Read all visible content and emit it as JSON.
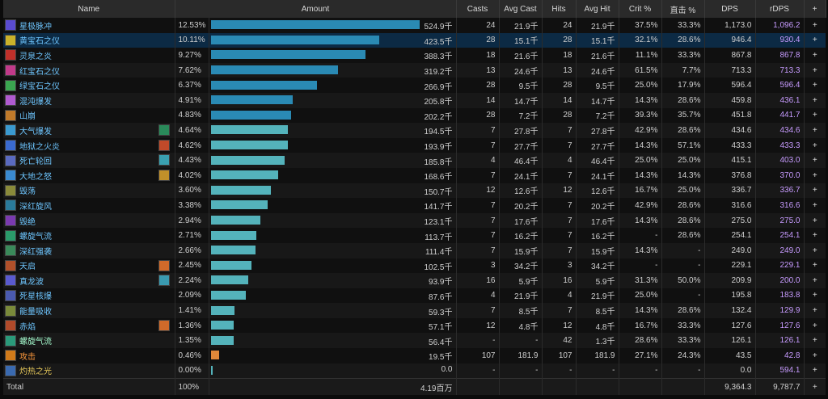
{
  "headers": {
    "name": "Name",
    "amount": "Amount",
    "casts": "Casts",
    "avg_cast": "Avg Cast",
    "hits": "Hits",
    "avg_hit": "Avg Hit",
    "crit": "Crit %",
    "zhiji": "直击 %",
    "dps": "DPS",
    "rdps": "rDPS",
    "plus": "+"
  },
  "colors": {
    "bar_primary": "#2a8ab4",
    "bar_pet": "#54b3bb",
    "bar_melee": "#e0893a",
    "selected_row": "#0c2a44",
    "rdps_text": "#c79bff"
  },
  "rows": [
    {
      "name": "星极脉冲",
      "icon": "star-icon",
      "icon_color": "#5a4bd0",
      "talent": "",
      "style": "",
      "percent": "12.53%",
      "fraction": 1.0,
      "amount": "524.9千",
      "casts": "24",
      "avg_cast": "21.9千",
      "hits": "24",
      "avg_hit": "21.9千",
      "crit": "37.5%",
      "zhiji": "33.3%",
      "dps": "1,173.0",
      "rdps": "1,096.2",
      "plus": "+"
    },
    {
      "name": "黄宝石之仪",
      "icon": "topaz-icon",
      "icon_color": "#c9b22a",
      "talent": "",
      "style": "",
      "percent": "10.11%",
      "fraction": 0.807,
      "amount": "423.5千",
      "casts": "28",
      "avg_cast": "15.1千",
      "hits": "28",
      "avg_hit": "15.1千",
      "crit": "32.1%",
      "zhiji": "28.6%",
      "dps": "946.4",
      "rdps": "930.4",
      "plus": "+",
      "selected": true
    },
    {
      "name": "灵泉之炎",
      "icon": "flame-icon",
      "icon_color": "#c0302a",
      "talent": "",
      "style": "",
      "percent": "9.27%",
      "fraction": 0.74,
      "amount": "388.3千",
      "casts": "18",
      "avg_cast": "21.6千",
      "hits": "18",
      "avg_hit": "21.6千",
      "crit": "11.1%",
      "zhiji": "33.3%",
      "dps": "867.8",
      "rdps": "867.8",
      "plus": "+"
    },
    {
      "name": "红宝石之仪",
      "icon": "ruby-icon",
      "icon_color": "#c23a8a",
      "talent": "",
      "style": "",
      "percent": "7.62%",
      "fraction": 0.608,
      "amount": "319.2千",
      "casts": "13",
      "avg_cast": "24.6千",
      "hits": "13",
      "avg_hit": "24.6千",
      "crit": "61.5%",
      "zhiji": "7.7%",
      "dps": "713.3",
      "rdps": "713.3",
      "plus": "+"
    },
    {
      "name": "绿宝石之仪",
      "icon": "emerald-icon",
      "icon_color": "#3aa650",
      "talent": "",
      "style": "",
      "percent": "6.37%",
      "fraction": 0.508,
      "amount": "266.9千",
      "casts": "28",
      "avg_cast": "9.5千",
      "hits": "28",
      "avg_hit": "9.5千",
      "crit": "25.0%",
      "zhiji": "17.9%",
      "dps": "596.4",
      "rdps": "596.4",
      "plus": "+"
    },
    {
      "name": "混沌爆发",
      "icon": "burst-icon",
      "icon_color": "#b05ad0",
      "talent": "",
      "style": "",
      "percent": "4.91%",
      "fraction": 0.392,
      "amount": "205.8千",
      "casts": "14",
      "avg_cast": "14.7千",
      "hits": "14",
      "avg_hit": "14.7千",
      "crit": "14.3%",
      "zhiji": "28.6%",
      "dps": "459.8",
      "rdps": "436.1",
      "plus": "+"
    },
    {
      "name": "山崩",
      "icon": "rock-icon",
      "icon_color": "#c07a2a",
      "talent": "",
      "style": "",
      "percent": "4.83%",
      "fraction": 0.385,
      "amount": "202.2千",
      "casts": "28",
      "avg_cast": "7.2千",
      "hits": "28",
      "avg_hit": "7.2千",
      "crit": "39.3%",
      "zhiji": "35.7%",
      "dps": "451.8",
      "rdps": "441.7",
      "plus": "+"
    },
    {
      "name": "大气爆发",
      "icon": "wind-icon",
      "icon_color": "#3a9ad0",
      "talent": "cyclone-talent-icon",
      "talent_color": "#2a8a5a",
      "style": "",
      "percent": "4.64%",
      "fraction": 0.37,
      "amount": "194.5千",
      "casts": "7",
      "avg_cast": "27.8千",
      "hits": "7",
      "avg_hit": "27.8千",
      "crit": "42.9%",
      "zhiji": "28.6%",
      "dps": "434.6",
      "rdps": "434.6",
      "plus": "+"
    },
    {
      "name": "地狱之火炎",
      "icon": "hellfire-icon",
      "icon_color": "#3a6ad0",
      "talent": "ifrit-talent-icon",
      "talent_color": "#c04a2a",
      "style": "",
      "percent": "4.62%",
      "fraction": 0.369,
      "amount": "193.9千",
      "casts": "7",
      "avg_cast": "27.7千",
      "hits": "7",
      "avg_hit": "27.7千",
      "crit": "14.3%",
      "zhiji": "57.1%",
      "dps": "433.3",
      "rdps": "433.3",
      "plus": "+"
    },
    {
      "name": "死亡轮回",
      "icon": "deathflare-icon",
      "icon_color": "#5a6ac0",
      "talent": "bahamut-talent-icon",
      "talent_color": "#3aa0b0",
      "style": "",
      "percent": "4.43%",
      "fraction": 0.354,
      "amount": "185.8千",
      "casts": "4",
      "avg_cast": "46.4千",
      "hits": "4",
      "avg_hit": "46.4千",
      "crit": "25.0%",
      "zhiji": "25.0%",
      "dps": "415.1",
      "rdps": "403.0",
      "plus": "+"
    },
    {
      "name": "大地之怒",
      "icon": "earth-icon",
      "icon_color": "#3a8ad0",
      "talent": "titan-talent-icon",
      "talent_color": "#c0902a",
      "style": "",
      "percent": "4.02%",
      "fraction": 0.321,
      "amount": "168.6千",
      "casts": "7",
      "avg_cast": "24.1千",
      "hits": "7",
      "avg_hit": "24.1千",
      "crit": "14.3%",
      "zhiji": "14.3%",
      "dps": "376.8",
      "rdps": "370.0",
      "plus": "+"
    },
    {
      "name": "毁荡",
      "icon": "ruin-icon",
      "icon_color": "#8a8a3a",
      "talent": "",
      "style": "",
      "percent": "3.60%",
      "fraction": 0.287,
      "amount": "150.7千",
      "casts": "12",
      "avg_cast": "12.6千",
      "hits": "12",
      "avg_hit": "12.6千",
      "crit": "16.7%",
      "zhiji": "25.0%",
      "dps": "336.7",
      "rdps": "336.7",
      "plus": "+"
    },
    {
      "name": "深红旋风",
      "icon": "crimson-cyclone-icon",
      "icon_color": "#2a7a9a",
      "talent": "",
      "style": "",
      "percent": "3.38%",
      "fraction": 0.27,
      "amount": "141.7千",
      "casts": "7",
      "avg_cast": "20.2千",
      "hits": "7",
      "avg_hit": "20.2千",
      "crit": "42.9%",
      "zhiji": "28.6%",
      "dps": "316.6",
      "rdps": "316.6",
      "plus": "+"
    },
    {
      "name": "毁绝",
      "icon": "ruin-iv-icon",
      "icon_color": "#7a3ab0",
      "talent": "",
      "style": "",
      "percent": "2.94%",
      "fraction": 0.235,
      "amount": "123.1千",
      "casts": "7",
      "avg_cast": "17.6千",
      "hits": "7",
      "avg_hit": "17.6千",
      "crit": "14.3%",
      "zhiji": "28.6%",
      "dps": "275.0",
      "rdps": "275.0",
      "plus": "+"
    },
    {
      "name": "螺旋气流",
      "icon": "slipstream-icon",
      "icon_color": "#2a9a6a",
      "talent": "",
      "style": "",
      "percent": "2.71%",
      "fraction": 0.217,
      "amount": "113.7千",
      "casts": "7",
      "avg_cast": "16.2千",
      "hits": "7",
      "avg_hit": "16.2千",
      "crit": "-",
      "zhiji": "28.6%",
      "dps": "254.1",
      "rdps": "254.1",
      "plus": "+"
    },
    {
      "name": "深红强袭",
      "icon": "crimson-strike-icon",
      "icon_color": "#3a8a5a",
      "talent": "",
      "style": "",
      "percent": "2.66%",
      "fraction": 0.212,
      "amount": "111.4千",
      "casts": "7",
      "avg_cast": "15.9千",
      "hits": "7",
      "avg_hit": "15.9千",
      "crit": "14.3%",
      "zhiji": "-",
      "dps": "249.0",
      "rdps": "249.0",
      "plus": "+"
    },
    {
      "name": "天启",
      "icon": "akh-morn-icon",
      "icon_color": "#b0502a",
      "talent": "phoenix-talent-icon",
      "talent_color": "#d06a2a",
      "style": "",
      "percent": "2.45%",
      "fraction": 0.195,
      "amount": "102.5千",
      "casts": "3",
      "avg_cast": "34.2千",
      "hits": "3",
      "avg_hit": "34.2千",
      "crit": "-",
      "zhiji": "-",
      "dps": "229.1",
      "rdps": "229.1",
      "plus": "+"
    },
    {
      "name": "真龙波",
      "icon": "dragon-icon",
      "icon_color": "#5a5ad0",
      "talent": "dragon-talent-icon",
      "talent_color": "#3a9ab0",
      "style": "",
      "percent": "2.24%",
      "fraction": 0.179,
      "amount": "93.9千",
      "casts": "16",
      "avg_cast": "5.9千",
      "hits": "16",
      "avg_hit": "5.9千",
      "crit": "31.3%",
      "zhiji": "50.0%",
      "dps": "209.9",
      "rdps": "200.0",
      "plus": "+"
    },
    {
      "name": "死星核爆",
      "icon": "deathstar-icon",
      "icon_color": "#4a5ab0",
      "talent": "",
      "style": "",
      "percent": "2.09%",
      "fraction": 0.167,
      "amount": "87.6千",
      "casts": "4",
      "avg_cast": "21.9千",
      "hits": "4",
      "avg_hit": "21.9千",
      "crit": "25.0%",
      "zhiji": "-",
      "dps": "195.8",
      "rdps": "183.8",
      "plus": "+"
    },
    {
      "name": "能量吸收",
      "icon": "energy-drain-icon",
      "icon_color": "#7a8a3a",
      "talent": "",
      "style": "",
      "percent": "1.41%",
      "fraction": 0.113,
      "amount": "59.3千",
      "casts": "7",
      "avg_cast": "8.5千",
      "hits": "7",
      "avg_hit": "8.5千",
      "crit": "14.3%",
      "zhiji": "28.6%",
      "dps": "132.4",
      "rdps": "129.9",
      "plus": "+"
    },
    {
      "name": "赤焰",
      "icon": "flare-icon",
      "icon_color": "#b04a2a",
      "talent": "phoenix-talent-icon",
      "talent_color": "#d06a2a",
      "style": "",
      "percent": "1.36%",
      "fraction": 0.109,
      "amount": "57.1千",
      "casts": "12",
      "avg_cast": "4.8千",
      "hits": "12",
      "avg_hit": "4.8千",
      "crit": "16.7%",
      "zhiji": "33.3%",
      "dps": "127.6",
      "rdps": "127.6",
      "plus": "+"
    },
    {
      "name": "螺旋气流",
      "icon": "slipstream-pet-icon",
      "icon_color": "#2a9a7a",
      "talent": "",
      "style": "pet",
      "percent": "1.35%",
      "fraction": 0.107,
      "amount": "56.4千",
      "casts": "-",
      "avg_cast": "-",
      "hits": "42",
      "avg_hit": "1.3千",
      "crit": "28.6%",
      "zhiji": "33.3%",
      "dps": "126.1",
      "rdps": "126.1",
      "plus": "+"
    },
    {
      "name": "攻击",
      "icon": "attack-icon",
      "icon_color": "#d07a1a",
      "talent": "",
      "style": "melee",
      "percent": "0.46%",
      "fraction": 0.037,
      "amount": "19.5千",
      "casts": "107",
      "avg_cast": "181.9",
      "hits": "107",
      "avg_hit": "181.9",
      "crit": "27.1%",
      "zhiji": "24.3%",
      "dps": "43.5",
      "rdps": "42.8",
      "plus": "+"
    },
    {
      "name": "灼热之光",
      "icon": "searing-light-icon",
      "icon_color": "#3a6ab0",
      "talent": "",
      "style": "yellow",
      "percent": "0.00%",
      "fraction": 0.004,
      "amount": "0.0",
      "casts": "-",
      "avg_cast": "-",
      "hits": "-",
      "avg_hit": "-",
      "crit": "-",
      "zhiji": "-",
      "dps": "0.0",
      "rdps": "594.1",
      "plus": "+"
    }
  ],
  "total": {
    "label": "Total",
    "percent": "100%",
    "amount": "4.19百万",
    "dps": "9,364.3",
    "rdps": "9,787.7",
    "plus": "+"
  }
}
